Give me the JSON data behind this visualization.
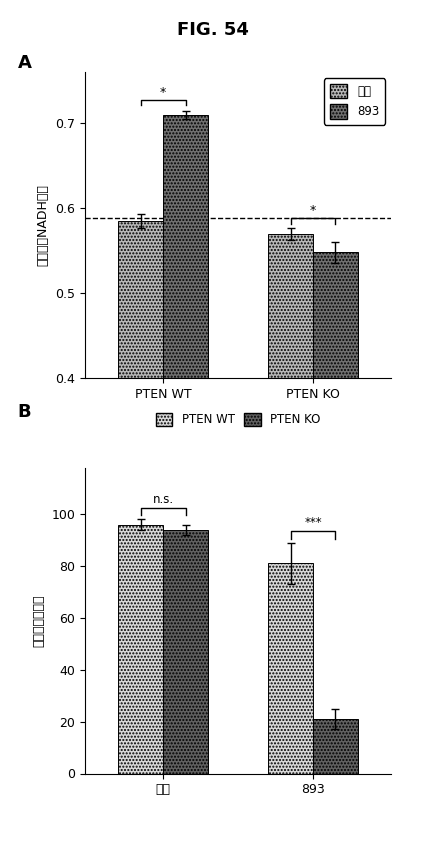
{
  "fig_title": "FIG. 54",
  "panel_A": {
    "label": "A",
    "ylabel": "結合したNADH画分",
    "ylim": [
      0.4,
      0.76
    ],
    "yticks": [
      0.4,
      0.5,
      0.6,
      0.7
    ],
    "dashed_line_y": 0.588,
    "groups": [
      "PTEN WT",
      "PTEN KO"
    ],
    "bar1_values": [
      0.585,
      0.57
    ],
    "bar1_errors": [
      0.008,
      0.007
    ],
    "bar2_values": [
      0.71,
      0.548
    ],
    "bar2_errors": [
      0.005,
      0.012
    ],
    "bar1_label": "対照",
    "bar2_label": "893",
    "bar1_color": "#b8b8b8",
    "bar2_color": "#707070",
    "bar1_hatch": ".....",
    "bar2_hatch": ".....",
    "sig_pten_wt": "*",
    "sig_pten_ko": "*",
    "legend_loc": "upper right"
  },
  "panel_B": {
    "label": "B",
    "ylabel": "生存パーセント",
    "ylim": [
      0,
      118
    ],
    "yticks": [
      0,
      20,
      40,
      60,
      80,
      100
    ],
    "groups": [
      "対照",
      "893"
    ],
    "bar1_values": [
      96,
      81
    ],
    "bar1_errors": [
      2,
      8
    ],
    "bar2_values": [
      94,
      21
    ],
    "bar2_errors": [
      2,
      4
    ],
    "bar1_label": "PTEN WT",
    "bar2_label": "PTEN KO",
    "bar1_color": "#d8d8d8",
    "bar2_color": "#606060",
    "bar1_hatch": ".....",
    "bar2_hatch": ".....",
    "sig_taisho": "n.s.",
    "sig_893": "***"
  }
}
